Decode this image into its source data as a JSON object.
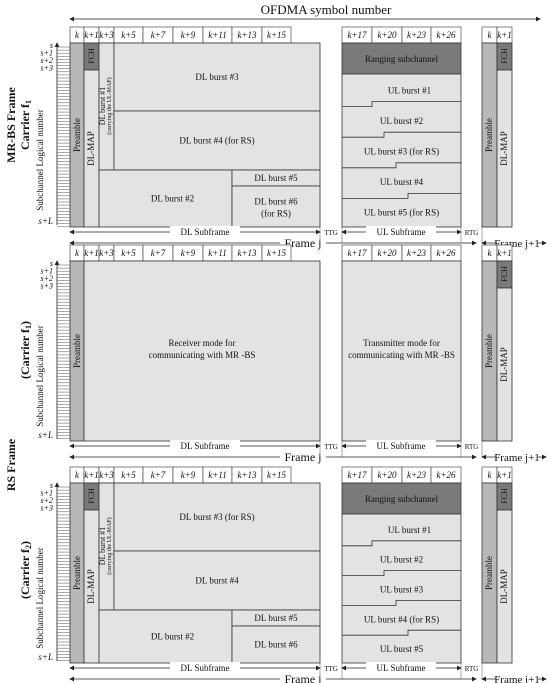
{
  "title": "OFDMA symbol number",
  "header_k": "k",
  "dl_headers": [
    "k+1",
    "k+3",
    "k+5",
    "k+7",
    "k+9",
    "k+11",
    "k+13",
    "k+15"
  ],
  "ul_headers": [
    "k+17",
    "k+20",
    "k+23",
    "k+26"
  ],
  "next_k": "k",
  "next_k1": "k+1",
  "subch": [
    "s",
    "s+1",
    "s+2",
    "s+3"
  ],
  "s_plus_l": "s+L",
  "y_axis_label": "Subchannel Logical number",
  "section_labels": {
    "mrbs_line1": "MR-BS Frame",
    "mrbs_line2": "Carrier f",
    "mrbs_sub": "1",
    "rs_frame": "RS Frame",
    "carrier_p": "(Carrier f",
    "carrier_1_sub": "1",
    "carrier_2_sub": "2",
    "carrier_close": ")"
  },
  "common": {
    "preamble": "Preamble",
    "dl_map": "DL-MAP",
    "fch": "FCH",
    "dl_subframe": "DL Subframe",
    "ul_subframe": "UL Subframe",
    "ttg": "TTG",
    "rtg": "RTG",
    "frame_j": "Frame j",
    "frame_j1": "Frame j+1"
  },
  "panel1": {
    "dl_burst1_a": "DL burst #1",
    "dl_burst1_b": "(carrying the UL-MAP)",
    "dl_burst3": "DL burst #3",
    "dl_burst4": "DL burst #4 (for RS)",
    "dl_burst2": "DL burst #2",
    "dl_burst5": "DL burst #5",
    "dl_burst6_a": "DL burst #6",
    "dl_burst6_b": "(for RS)",
    "ranging": "Ranging subchannel",
    "ul_burst1": "UL burst #1",
    "ul_burst2": "UL burst #2",
    "ul_burst3": "UL burst #3 (for RS)",
    "ul_burst4": "UL burst #4",
    "ul_burst5": "UL burst #5 (for RS)"
  },
  "panel2": {
    "receiver_a": "Receiver mode for",
    "receiver_b": "communicating with MR -BS",
    "transmitter_a": "Transmitter mode for",
    "transmitter_b": "communicating with MR -BS"
  },
  "panel3": {
    "dl_burst1_a": "DL burst #1",
    "dl_burst1_b": "(carrying the UL-MAP)",
    "dl_burst3": "DL burst #3 (for RS)",
    "dl_burst4": "DL burst #4",
    "dl_burst2": "DL burst #2",
    "dl_burst5": "DL burst #5",
    "dl_burst6": "DL burst #6",
    "ranging": "Ranging subchannel",
    "ul_burst1": "UL burst #1",
    "ul_burst2": "UL burst #2",
    "ul_burst3": "UL burst #3",
    "ul_burst4": "UL burst #4 (for RS)",
    "ul_burst5": "UL burst #5"
  }
}
